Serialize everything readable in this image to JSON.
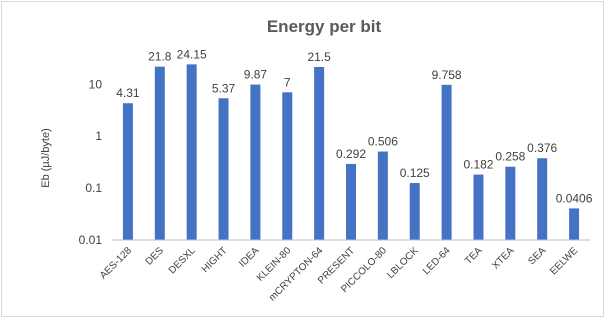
{
  "chart_data": {
    "type": "bar",
    "title": "Energy per bit",
    "ylabel": "Eb (µJ/byte)",
    "xlabel": "",
    "yscale": "log",
    "ylim": [
      0.01,
      40
    ],
    "yticks": [
      0.01,
      0.1,
      1,
      10
    ],
    "ytick_labels": [
      "0.01",
      "0.1",
      "1",
      "10"
    ],
    "grid": false,
    "legend": "none",
    "bar_color": "#4472c4",
    "categories": [
      "AES-128",
      "DES",
      "DESXL",
      "HIGHT",
      "IDEA",
      "KLEIN-80",
      "mCRYPTON-64",
      "PRESENT",
      "PICCOLO-80",
      "LBLOCK",
      "LED-64",
      "TEA",
      "XTEA",
      "SEA",
      "EELWE"
    ],
    "values": [
      4.31,
      21.8,
      24.15,
      5.37,
      9.87,
      7,
      21.5,
      0.292,
      0.506,
      0.125,
      9.758,
      0.182,
      0.258,
      0.376,
      0.0406
    ],
    "value_labels": [
      "4.31",
      "21.8",
      "24.15",
      "5.37",
      "9.87",
      "7",
      "21.5",
      "0.292",
      "0.506",
      "0.125",
      "9.758",
      "0.182",
      "0.258",
      "0.376",
      "0.0406"
    ]
  }
}
